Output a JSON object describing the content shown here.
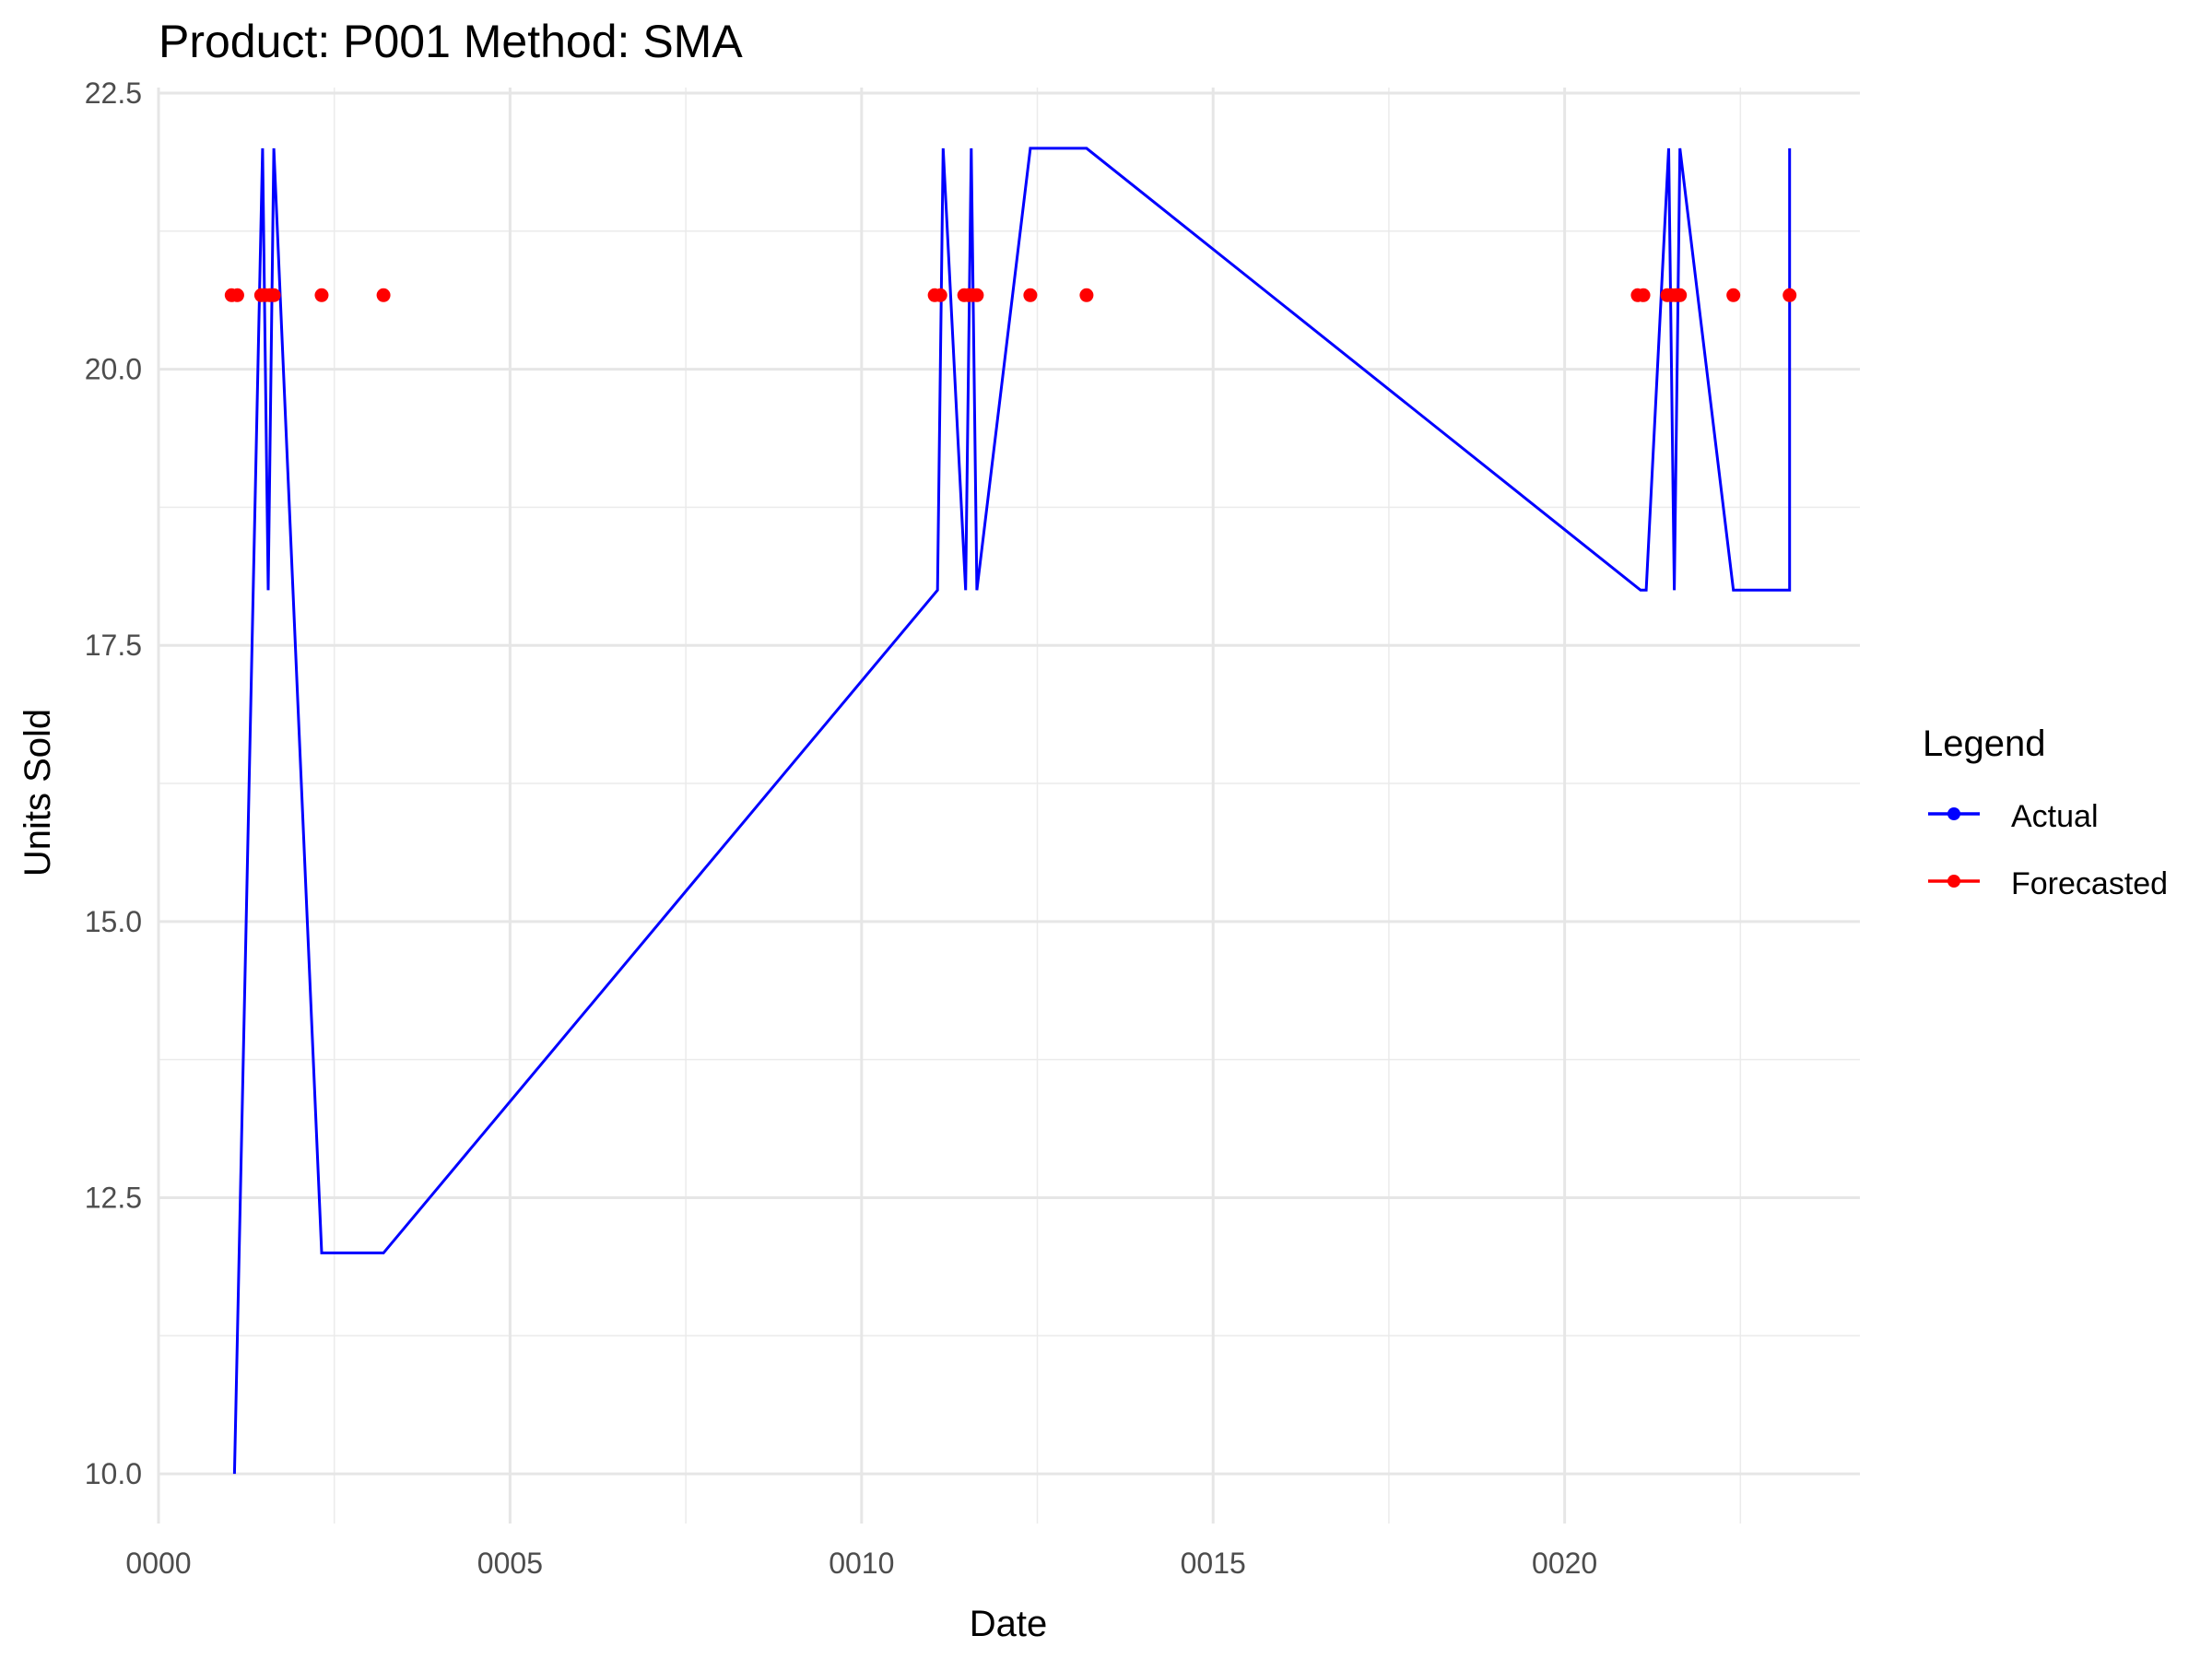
{
  "chart_data": {
    "type": "line",
    "title": "Product: P001 Method: SMA",
    "xlabel": "Date",
    "ylabel": "Units Sold",
    "xlim": [
      0,
      24.2
    ],
    "ylim": [
      9.55,
      22.55
    ],
    "x_ticks": [
      {
        "value": 0,
        "label": "0000"
      },
      {
        "value": 5,
        "label": "0005"
      },
      {
        "value": 10,
        "label": "0010"
      },
      {
        "value": 15,
        "label": "0015"
      },
      {
        "value": 20,
        "label": "0020"
      }
    ],
    "y_ticks": [
      {
        "value": 10.0,
        "label": "10.0"
      },
      {
        "value": 12.5,
        "label": "12.5"
      },
      {
        "value": 15.0,
        "label": "15.0"
      },
      {
        "value": 17.5,
        "label": "17.5"
      },
      {
        "value": 20.0,
        "label": "20.0"
      },
      {
        "value": 22.5,
        "label": "22.5"
      }
    ],
    "grid": true,
    "legend": {
      "title": "Legend",
      "position": "right",
      "entries": [
        "Actual",
        "Forecasted"
      ]
    },
    "series": [
      {
        "name": "Actual",
        "color": "#0000ff",
        "style": "line",
        "x": [
          1.08,
          1.48,
          1.56,
          1.64,
          2.32,
          3.2,
          11.08,
          11.16,
          11.48,
          11.56,
          11.64,
          12.4,
          13.2,
          21.08,
          21.16,
          21.48,
          21.56,
          21.64,
          22.4,
          23.2,
          23.2
        ],
        "y": [
          10,
          22,
          18,
          22,
          12,
          12,
          18,
          22,
          18,
          22,
          18,
          22,
          22,
          18,
          18,
          22,
          18,
          22,
          18,
          18,
          22
        ]
      },
      {
        "name": "Forecasted",
        "color": "#ff0000",
        "style": "points",
        "x": [
          1.04,
          1.12,
          1.46,
          1.52,
          1.58,
          1.64,
          2.32,
          3.2,
          11.04,
          11.12,
          11.46,
          11.52,
          11.58,
          11.64,
          12.4,
          13.2,
          21.04,
          21.12,
          21.46,
          21.52,
          21.58,
          21.64,
          22.4,
          23.2
        ],
        "y": [
          20.67,
          20.67,
          20.67,
          20.67,
          20.67,
          20.67,
          20.67,
          20.67,
          20.67,
          20.67,
          20.67,
          20.67,
          20.67,
          20.67,
          20.67,
          20.67,
          20.67,
          20.67,
          20.67,
          20.67,
          20.67,
          20.67,
          20.67,
          20.67
        ]
      }
    ]
  }
}
